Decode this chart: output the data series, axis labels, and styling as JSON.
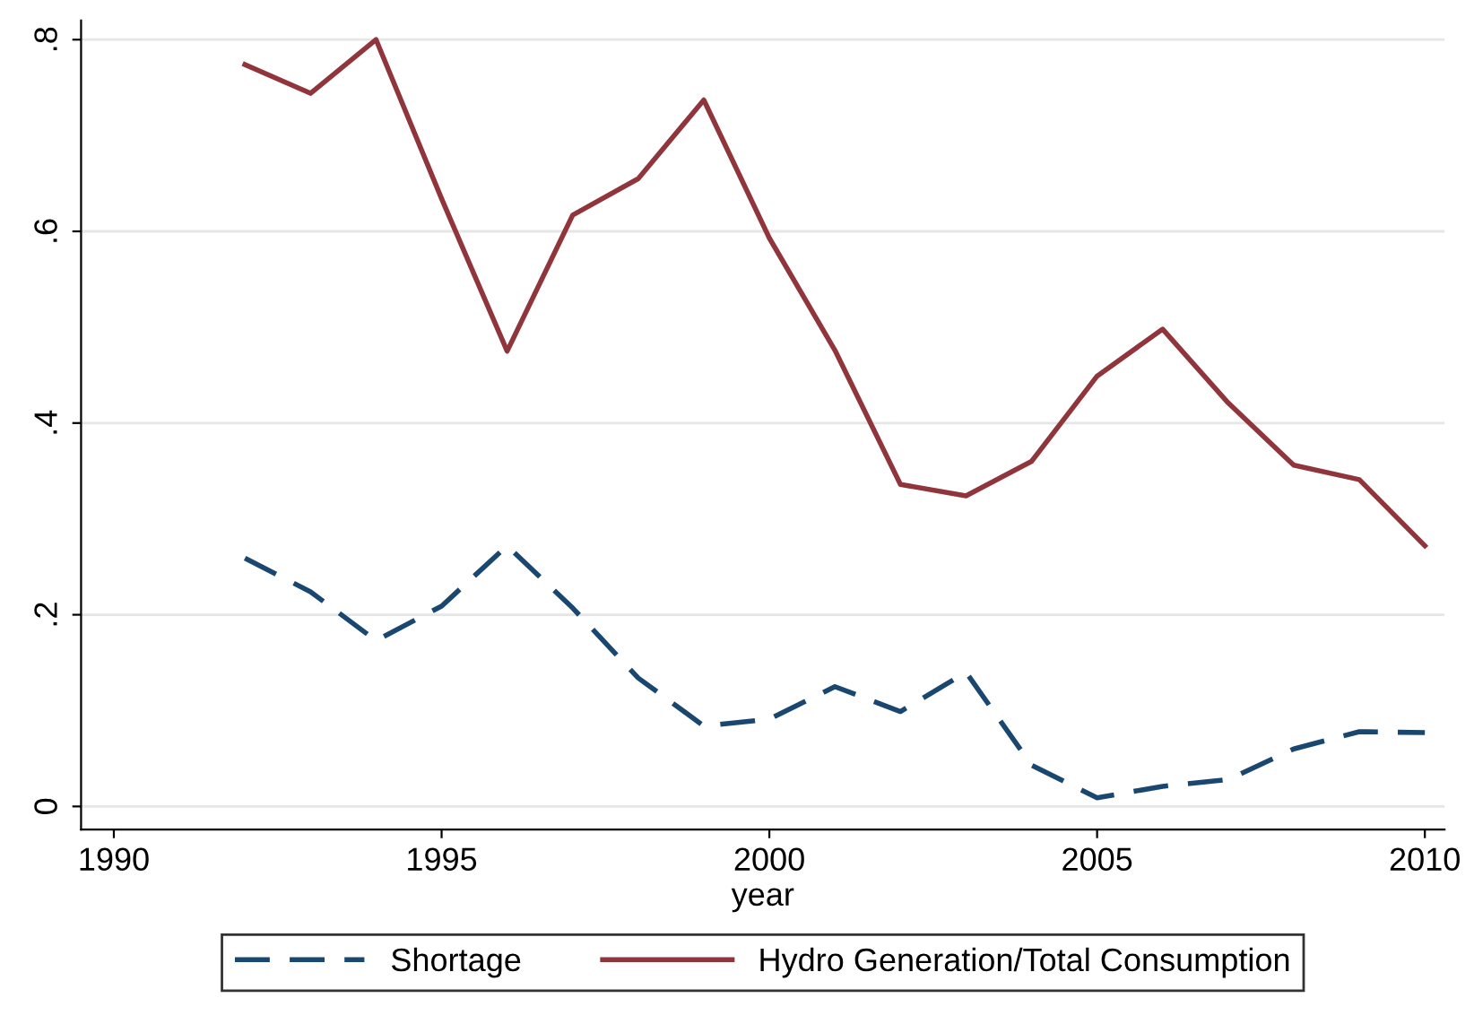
{
  "chart_data": {
    "type": "line",
    "xlabel": "year",
    "x": [
      1992,
      1993,
      1994,
      1995,
      1996,
      1997,
      1998,
      1999,
      2000,
      2001,
      2002,
      2003,
      2004,
      2005,
      2006,
      2007,
      2008,
      2009,
      2010
    ],
    "series": [
      {
        "name": "Shortage",
        "color": "#1a476f",
        "line_style": "dashed",
        "values": [
          0.259,
          0.224,
          0.173,
          0.209,
          0.272,
          0.207,
          0.134,
          0.084,
          0.091,
          0.125,
          0.099,
          0.14,
          0.043,
          0.009,
          0.021,
          0.028,
          0.06,
          0.078,
          0.077
        ]
      },
      {
        "name": "Hydro Generation/Total Consumption",
        "color": "#90353b",
        "line_style": "solid",
        "values": [
          0.774,
          0.744,
          0.8,
          0.634,
          0.475,
          0.617,
          0.655,
          0.737,
          0.593,
          0.476,
          0.336,
          0.324,
          0.36,
          0.449,
          0.498,
          0.421,
          0.356,
          0.341,
          0.272
        ]
      }
    ],
    "xlim": [
      1989.5,
      2010.3
    ],
    "xticks": [
      1990,
      1995,
      2000,
      2005,
      2010
    ],
    "ylim": [
      -0.024,
      0.82
    ],
    "yticks": [
      {
        "value": 0,
        "label": "0"
      },
      {
        "value": 0.2,
        "label": ".2"
      },
      {
        "value": 0.4,
        "label": ".4"
      },
      {
        "value": 0.6,
        "label": ".6"
      },
      {
        "value": 0.8,
        "label": ".8"
      }
    ],
    "grid": "y",
    "legend": "bottom"
  }
}
